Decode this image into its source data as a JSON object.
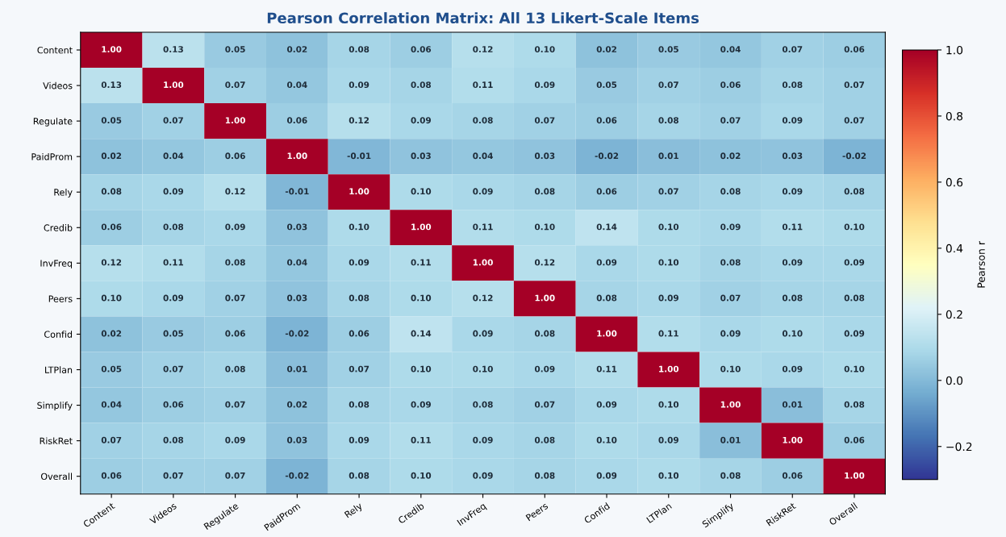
{
  "chart_data": {
    "type": "heatmap",
    "title": "Pearson Correlation Matrix: All 13 Likert-Scale Items",
    "clabel": "Pearson r",
    "categories": [
      "Content",
      "Videos",
      "Regulate",
      "PaidProm",
      "Rely",
      "Credib",
      "InvFreq",
      "Peers",
      "Confid",
      "LTPlan",
      "Simplify",
      "RiskRet",
      "Overall"
    ],
    "y_categories": [
      "Content",
      "Videos",
      "Regulate",
      "PaidProm",
      "Rely",
      "Credib",
      "InvFreq",
      "Peers",
      "Confid",
      "LTPlan",
      "Simplify",
      "RiskRet",
      "Overall"
    ],
    "cells": [
      [
        1.0,
        0.13,
        0.05,
        0.02,
        0.08,
        0.06,
        0.12,
        0.1,
        0.02,
        0.05,
        0.04,
        0.07,
        0.06
      ],
      [
        0.13,
        1.0,
        0.07,
        0.04,
        0.09,
        0.08,
        0.11,
        0.09,
        0.05,
        0.07,
        0.06,
        0.08,
        0.07
      ],
      [
        0.05,
        0.07,
        1.0,
        0.06,
        0.12,
        0.09,
        0.08,
        0.07,
        0.06,
        0.08,
        0.07,
        0.09,
        0.07
      ],
      [
        0.02,
        0.04,
        0.06,
        1.0,
        -0.01,
        0.03,
        0.04,
        0.03,
        -0.02,
        0.01,
        0.02,
        0.03,
        -0.02
      ],
      [
        0.08,
        0.09,
        0.12,
        -0.01,
        1.0,
        0.1,
        0.09,
        0.08,
        0.06,
        0.07,
        0.08,
        0.09,
        0.08
      ],
      [
        0.06,
        0.08,
        0.09,
        0.03,
        0.1,
        1.0,
        0.11,
        0.1,
        0.14,
        0.1,
        0.09,
        0.11,
        0.1
      ],
      [
        0.12,
        0.11,
        0.08,
        0.04,
        0.09,
        0.11,
        1.0,
        0.12,
        0.09,
        0.1,
        0.08,
        0.09,
        0.09
      ],
      [
        0.1,
        0.09,
        0.07,
        0.03,
        0.08,
        0.1,
        0.12,
        1.0,
        0.08,
        0.09,
        0.07,
        0.08,
        0.08
      ],
      [
        0.02,
        0.05,
        0.06,
        -0.02,
        0.06,
        0.14,
        0.09,
        0.08,
        1.0,
        0.11,
        0.09,
        0.1,
        0.09
      ],
      [
        0.05,
        0.07,
        0.08,
        0.01,
        0.07,
        0.1,
        0.1,
        0.09,
        0.11,
        1.0,
        0.1,
        0.09,
        0.1
      ],
      [
        0.04,
        0.06,
        0.07,
        0.02,
        0.08,
        0.09,
        0.08,
        0.07,
        0.09,
        0.1,
        1.0,
        0.01,
        0.08
      ],
      [
        0.07,
        0.08,
        0.09,
        0.03,
        0.09,
        0.11,
        0.09,
        0.08,
        0.1,
        0.09,
        0.01,
        1.0,
        0.06
      ],
      [
        0.06,
        0.07,
        0.07,
        -0.02,
        0.08,
        0.1,
        0.09,
        0.08,
        0.09,
        0.1,
        0.08,
        0.06,
        1.0
      ]
    ],
    "cell_labels": [
      [
        "1.00",
        "0.13",
        "0.05",
        "0.02",
        "0.08",
        "0.06",
        "0.12",
        "0.10",
        "0.02",
        "0.05",
        "0.04",
        "0.07",
        "0.06"
      ],
      [
        "0.13",
        "1.00",
        "0.07",
        "0.04",
        "0.09",
        "0.08",
        "0.11",
        "0.09",
        "0.05",
        "0.07",
        "0.06",
        "0.08",
        "0.07"
      ],
      [
        "0.05",
        "0.07",
        "1.00",
        "0.06",
        "0.12",
        "0.09",
        "0.08",
        "0.07",
        "0.06",
        "0.08",
        "0.07",
        "0.09",
        "0.07"
      ],
      [
        "0.02",
        "0.04",
        "0.06",
        "1.00",
        "-0.01",
        "0.03",
        "0.04",
        "0.03",
        "-0.02",
        "0.01",
        "0.02",
        "0.03",
        "-0.02"
      ],
      [
        "0.08",
        "0.09",
        "0.12",
        "-0.01",
        "1.00",
        "0.10",
        "0.09",
        "0.08",
        "0.06",
        "0.07",
        "0.08",
        "0.09",
        "0.08"
      ],
      [
        "0.06",
        "0.08",
        "0.09",
        "0.03",
        "0.10",
        "1.00",
        "0.11",
        "0.10",
        "0.14",
        "0.10",
        "0.09",
        "0.11",
        "0.10"
      ],
      [
        "0.12",
        "0.11",
        "0.08",
        "0.04",
        "0.09",
        "0.11",
        "1.00",
        "0.12",
        "0.09",
        "0.10",
        "0.08",
        "0.09",
        "0.09"
      ],
      [
        "0.10",
        "0.09",
        "0.07",
        "0.03",
        "0.08",
        "0.10",
        "0.12",
        "1.00",
        "0.08",
        "0.09",
        "0.07",
        "0.08",
        "0.08"
      ],
      [
        "0.02",
        "0.05",
        "0.06",
        "-0.02",
        "0.06",
        "0.14",
        "0.09",
        "0.08",
        "1.00",
        "0.11",
        "0.09",
        "0.10",
        "0.09"
      ],
      [
        "0.05",
        "0.07",
        "0.08",
        "0.01",
        "0.07",
        "0.10",
        "0.10",
        "0.09",
        "0.11",
        "1.00",
        "0.10",
        "0.09",
        "0.10"
      ],
      [
        "0.04",
        "0.06",
        "0.07",
        "0.02",
        "0.08",
        "0.09",
        "0.08",
        "0.07",
        "0.09",
        "0.10",
        "1.00",
        "0.01",
        "0.08"
      ],
      [
        "0.07",
        "0.08",
        "0.09",
        "0.03",
        "0.09",
        "0.11",
        "0.09",
        "0.08",
        "0.10",
        "0.09",
        "0.01",
        "1.00",
        "0.06"
      ],
      [
        "0.06",
        "0.07",
        "0.07",
        "-0.02",
        "0.08",
        "0.10",
        "0.09",
        "0.08",
        "0.09",
        "0.10",
        "0.08",
        "0.06",
        "1.00"
      ]
    ],
    "clim": [
      -0.3,
      1.0
    ],
    "cticks": [
      {
        "value": -0.2,
        "label": "−0.2"
      },
      {
        "value": 0.0,
        "label": "0.0"
      },
      {
        "value": 0.2,
        "label": "0.2"
      },
      {
        "value": 0.4,
        "label": "0.4"
      },
      {
        "value": 0.6,
        "label": "0.6"
      },
      {
        "value": 0.8,
        "label": "0.8"
      },
      {
        "value": 1.0,
        "label": "1.0"
      }
    ]
  }
}
